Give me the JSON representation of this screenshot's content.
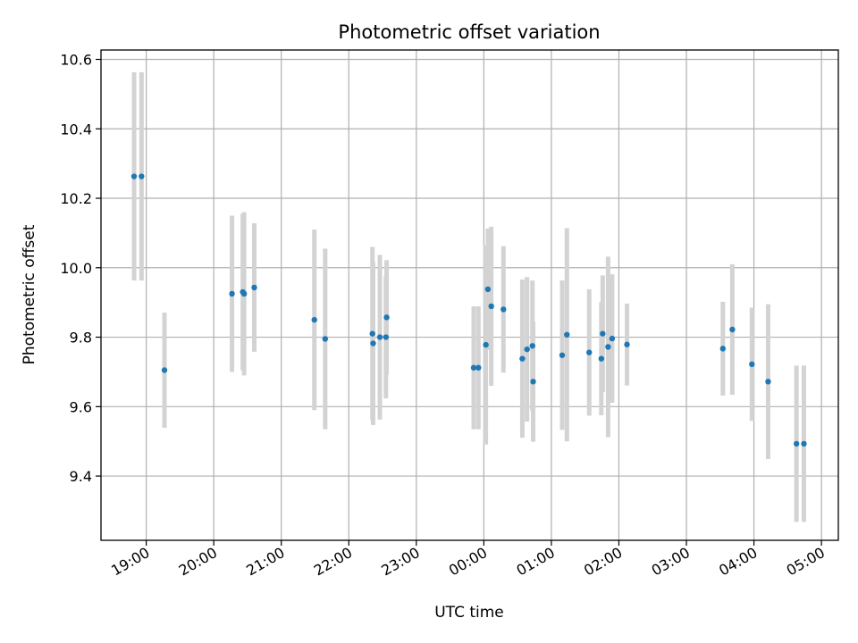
{
  "chart_data": {
    "type": "scatter",
    "title": "Photometric offset variation",
    "xlabel": "UTC time",
    "ylabel": "Photometric offset",
    "x_unit": "hours",
    "xlim": [
      18.33,
      29.25
    ],
    "ylim": [
      9.215,
      10.627
    ],
    "x_ticks": [
      {
        "value": 19,
        "label": "19:00"
      },
      {
        "value": 20,
        "label": "20:00"
      },
      {
        "value": 21,
        "label": "21:00"
      },
      {
        "value": 22,
        "label": "22:00"
      },
      {
        "value": 23,
        "label": "23:00"
      },
      {
        "value": 24,
        "label": "00:00"
      },
      {
        "value": 25,
        "label": "01:00"
      },
      {
        "value": 26,
        "label": "02:00"
      },
      {
        "value": 27,
        "label": "03:00"
      },
      {
        "value": 28,
        "label": "04:00"
      },
      {
        "value": 29,
        "label": "05:00"
      }
    ],
    "y_ticks": [
      {
        "value": 9.4,
        "label": "9.4"
      },
      {
        "value": 9.6,
        "label": "9.6"
      },
      {
        "value": 9.8,
        "label": "9.8"
      },
      {
        "value": 10.0,
        "label": "10.0"
      },
      {
        "value": 10.2,
        "label": "10.2"
      },
      {
        "value": 10.4,
        "label": "10.4"
      },
      {
        "value": 10.6,
        "label": "10.6"
      }
    ],
    "grid": true,
    "colors": {
      "point": "#1f77b4",
      "errorbar": "#d3d3d3"
    },
    "points": [
      {
        "x": 18.82,
        "y": 10.263,
        "err": 0.3
      },
      {
        "x": 18.93,
        "y": 10.263,
        "err": 0.3
      },
      {
        "x": 19.27,
        "y": 9.705,
        "err": 0.166
      },
      {
        "x": 20.27,
        "y": 9.925,
        "err": 0.225
      },
      {
        "x": 20.43,
        "y": 9.93,
        "err": 0.225
      },
      {
        "x": 20.45,
        "y": 9.925,
        "err": 0.235
      },
      {
        "x": 20.6,
        "y": 9.943,
        "err": 0.185
      },
      {
        "x": 21.49,
        "y": 9.85,
        "err": 0.26
      },
      {
        "x": 21.65,
        "y": 9.795,
        "err": 0.26
      },
      {
        "x": 22.35,
        "y": 9.81,
        "err": 0.25
      },
      {
        "x": 22.36,
        "y": 9.782,
        "err": 0.235
      },
      {
        "x": 22.46,
        "y": 9.8,
        "err": 0.237
      },
      {
        "x": 22.55,
        "y": 9.8,
        "err": 0.176
      },
      {
        "x": 22.56,
        "y": 9.857,
        "err": 0.165
      },
      {
        "x": 23.85,
        "y": 9.712,
        "err": 0.177
      },
      {
        "x": 23.92,
        "y": 9.712,
        "err": 0.177
      },
      {
        "x": 24.03,
        "y": 9.778,
        "err": 0.287
      },
      {
        "x": 24.06,
        "y": 9.938,
        "err": 0.175
      },
      {
        "x": 24.11,
        "y": 9.889,
        "err": 0.229
      },
      {
        "x": 24.29,
        "y": 9.88,
        "err": 0.182
      },
      {
        "x": 24.57,
        "y": 9.738,
        "err": 0.228
      },
      {
        "x": 24.64,
        "y": 9.765,
        "err": 0.208
      },
      {
        "x": 24.72,
        "y": 9.775,
        "err": 0.188
      },
      {
        "x": 24.73,
        "y": 9.672,
        "err": 0.173
      },
      {
        "x": 25.16,
        "y": 9.748,
        "err": 0.215
      },
      {
        "x": 25.23,
        "y": 9.807,
        "err": 0.307
      },
      {
        "x": 25.56,
        "y": 9.756,
        "err": 0.182
      },
      {
        "x": 25.74,
        "y": 9.738,
        "err": 0.163
      },
      {
        "x": 25.76,
        "y": 9.81,
        "err": 0.168
      },
      {
        "x": 25.84,
        "y": 9.772,
        "err": 0.26
      },
      {
        "x": 25.9,
        "y": 9.796,
        "err": 0.185
      },
      {
        "x": 26.12,
        "y": 9.779,
        "err": 0.118
      },
      {
        "x": 27.54,
        "y": 9.767,
        "err": 0.135
      },
      {
        "x": 27.68,
        "y": 9.822,
        "err": 0.188
      },
      {
        "x": 27.97,
        "y": 9.722,
        "err": 0.163
      },
      {
        "x": 28.21,
        "y": 9.672,
        "err": 0.223
      },
      {
        "x": 28.63,
        "y": 9.493,
        "err": 0.225
      },
      {
        "x": 28.74,
        "y": 9.493,
        "err": 0.225
      }
    ]
  }
}
